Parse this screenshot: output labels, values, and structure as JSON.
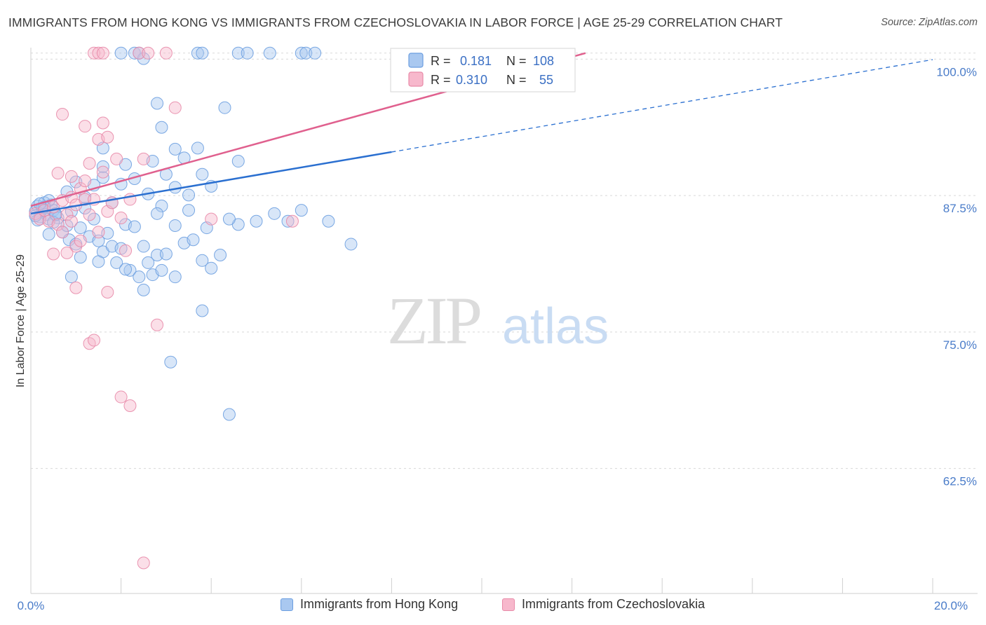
{
  "title": "IMMIGRANTS FROM HONG KONG VS IMMIGRANTS FROM CZECHOSLOVAKIA IN LABOR FORCE | AGE 25-29 CORRELATION CHART",
  "source": "Source: ZipAtlas.com",
  "watermark": {
    "zip": "ZIP",
    "atlas": "atlas"
  },
  "colors": {
    "blue_fill": "#a9c8f0",
    "blue_stroke": "#6b9ee0",
    "blue_line": "#2a6fd0",
    "pink_fill": "#f7b8cc",
    "pink_stroke": "#e88aa8",
    "pink_line": "#e0608e",
    "tick_label": "#4a7cc9",
    "grid": "#d8d8d8"
  },
  "legend": {
    "rows": [
      {
        "r_label": "R =",
        "r_value": "0.181",
        "n_label": "N =",
        "n_value": "108"
      },
      {
        "r_label": "R =",
        "r_value": "0.310",
        "n_label": "N =",
        "n_value": "55"
      }
    ]
  },
  "bottom_legend": [
    "Immigrants from Hong Kong",
    "Immigrants from Czechoslovakia"
  ],
  "chart_data": {
    "type": "scatter",
    "title": "IMMIGRANTS FROM HONG KONG VS IMMIGRANTS FROM CZECHOSLOVAKIA IN LABOR FORCE | AGE 25-29 CORRELATION CHART",
    "xlabel": "",
    "ylabel": "In Labor Force | Age 25-29",
    "xlim": [
      0,
      20
    ],
    "ylim": [
      50.5,
      100.5
    ],
    "x_tick_labels": [
      "0.0%",
      "20.0%"
    ],
    "y_ticks": [
      62.5,
      75.0,
      87.5,
      100.0
    ],
    "y_tick_labels": [
      "62.5%",
      "75.0%",
      "87.5%",
      "100.0%"
    ],
    "series": [
      {
        "name": "Immigrants from Hong Kong",
        "r": 0.181,
        "n": 108,
        "trend": {
          "x0": 0,
          "y0": 85.3,
          "x_solid_end": 8.0,
          "x1": 20,
          "y1": 99.4
        },
        "points": [
          [
            0.1,
            85.5
          ],
          [
            0.15,
            86.0
          ],
          [
            0.2,
            85.0
          ],
          [
            0.25,
            85.8
          ],
          [
            0.3,
            86.3
          ],
          [
            0.35,
            85.2
          ],
          [
            0.4,
            84.8
          ],
          [
            0.45,
            86.1
          ],
          [
            0.5,
            85.6
          ],
          [
            0.55,
            85.3
          ],
          [
            0.6,
            84.9
          ],
          [
            0.4,
            86.5
          ],
          [
            0.3,
            85.9
          ],
          [
            0.2,
            86.2
          ],
          [
            0.15,
            84.7
          ],
          [
            0.1,
            85.1
          ],
          [
            0.4,
            83.4
          ],
          [
            0.5,
            84.5
          ],
          [
            0.55,
            85.2
          ],
          [
            0.7,
            83.6
          ],
          [
            0.8,
            84.2
          ],
          [
            0.85,
            82.9
          ],
          [
            0.9,
            85.5
          ],
          [
            1.0,
            82.5
          ],
          [
            1.1,
            84.0
          ],
          [
            1.2,
            85.8
          ],
          [
            1.3,
            83.2
          ],
          [
            1.4,
            84.8
          ],
          [
            1.5,
            82.8
          ],
          [
            1.6,
            81.8
          ],
          [
            1.7,
            83.5
          ],
          [
            1.8,
            82.3
          ],
          [
            1.9,
            80.8
          ],
          [
            2.0,
            82.1
          ],
          [
            2.1,
            84.3
          ],
          [
            2.2,
            80.1
          ],
          [
            2.3,
            84.1
          ],
          [
            2.4,
            79.5
          ],
          [
            2.5,
            82.3
          ],
          [
            2.6,
            80.8
          ],
          [
            2.7,
            79.7
          ],
          [
            2.8,
            81.5
          ],
          [
            2.9,
            80.1
          ],
          [
            3.0,
            81.6
          ],
          [
            3.2,
            84.2
          ],
          [
            3.4,
            82.6
          ],
          [
            3.6,
            82.9
          ],
          [
            3.8,
            81.0
          ],
          [
            4.0,
            80.3
          ],
          [
            4.2,
            81.5
          ],
          [
            4.6,
            84.3
          ],
          [
            5.0,
            84.6
          ],
          [
            5.4,
            85.3
          ],
          [
            5.7,
            84.6
          ],
          [
            6.0,
            85.6
          ],
          [
            6.6,
            84.6
          ],
          [
            7.1,
            82.5
          ],
          [
            0.8,
            87.3
          ],
          [
            1.0,
            88.2
          ],
          [
            1.2,
            86.8
          ],
          [
            1.4,
            87.9
          ],
          [
            1.6,
            88.6
          ],
          [
            1.8,
            86.3
          ],
          [
            2.0,
            88.0
          ],
          [
            2.3,
            88.5
          ],
          [
            2.6,
            87.1
          ],
          [
            2.9,
            86.0
          ],
          [
            3.2,
            87.7
          ],
          [
            3.5,
            87.0
          ],
          [
            3.8,
            88.9
          ],
          [
            4.0,
            87.8
          ],
          [
            1.6,
            89.6
          ],
          [
            2.1,
            89.8
          ],
          [
            2.7,
            90.1
          ],
          [
            3.0,
            88.9
          ],
          [
            3.4,
            90.4
          ],
          [
            4.6,
            90.1
          ],
          [
            1.6,
            91.3
          ],
          [
            2.9,
            93.2
          ],
          [
            3.2,
            91.2
          ],
          [
            3.7,
            91.3
          ],
          [
            4.3,
            95.0
          ],
          [
            2.8,
            95.4
          ],
          [
            1.1,
            81.3
          ],
          [
            2.1,
            80.2
          ],
          [
            3.2,
            79.5
          ],
          [
            2.5,
            78.3
          ],
          [
            0.9,
            79.5
          ],
          [
            3.5,
            85.6
          ],
          [
            3.9,
            84.0
          ],
          [
            2.8,
            85.3
          ],
          [
            4.4,
            84.8
          ],
          [
            2.0,
            100.0
          ],
          [
            2.3,
            100.0
          ],
          [
            2.5,
            99.5
          ],
          [
            2.4,
            100.0
          ],
          [
            3.7,
            100.0
          ],
          [
            3.8,
            100.0
          ],
          [
            4.6,
            100.0
          ],
          [
            4.8,
            100.0
          ],
          [
            5.3,
            100.0
          ],
          [
            6.0,
            100.0
          ],
          [
            6.1,
            100.0
          ],
          [
            6.3,
            100.0
          ],
          [
            3.8,
            76.4
          ],
          [
            3.1,
            71.7
          ],
          [
            4.4,
            66.9
          ],
          [
            1.5,
            80.9
          ]
        ]
      },
      {
        "name": "Immigrants from Czechoslovakia",
        "r": 0.31,
        "n": 55,
        "trend": {
          "x0": 0,
          "y0": 86.0,
          "x1": 12.3,
          "y1": 100.0
        },
        "points": [
          [
            0.1,
            85.3
          ],
          [
            0.2,
            84.8
          ],
          [
            0.3,
            85.6
          ],
          [
            0.4,
            84.6
          ],
          [
            0.5,
            85.9
          ],
          [
            0.6,
            84.3
          ],
          [
            0.7,
            86.5
          ],
          [
            0.8,
            85.2
          ],
          [
            0.9,
            86.8
          ],
          [
            1.0,
            86.1
          ],
          [
            1.2,
            86.6
          ],
          [
            1.1,
            87.6
          ],
          [
            0.7,
            83.6
          ],
          [
            0.9,
            84.6
          ],
          [
            1.0,
            82.3
          ],
          [
            1.3,
            85.2
          ],
          [
            1.5,
            83.6
          ],
          [
            1.7,
            85.5
          ],
          [
            1.8,
            86.3
          ],
          [
            2.0,
            84.9
          ],
          [
            2.2,
            86.6
          ],
          [
            0.5,
            81.6
          ],
          [
            0.8,
            81.7
          ],
          [
            1.1,
            82.8
          ],
          [
            1.4,
            86.6
          ],
          [
            1.2,
            88.3
          ],
          [
            1.6,
            89.1
          ],
          [
            1.9,
            90.3
          ],
          [
            0.6,
            89.0
          ],
          [
            0.9,
            88.7
          ],
          [
            1.3,
            89.9
          ],
          [
            2.5,
            90.3
          ],
          [
            1.5,
            92.1
          ],
          [
            1.7,
            92.3
          ],
          [
            1.2,
            93.3
          ],
          [
            1.6,
            93.6
          ],
          [
            0.7,
            94.4
          ],
          [
            3.2,
            95.0
          ],
          [
            2.1,
            81.9
          ],
          [
            1.0,
            78.5
          ],
          [
            1.7,
            78.1
          ],
          [
            2.8,
            75.1
          ],
          [
            1.3,
            73.4
          ],
          [
            1.4,
            73.7
          ],
          [
            2.0,
            68.5
          ],
          [
            2.2,
            67.7
          ],
          [
            2.5,
            53.3
          ],
          [
            4.0,
            84.8
          ],
          [
            5.8,
            84.6
          ],
          [
            1.4,
            100.0
          ],
          [
            1.5,
            100.0
          ],
          [
            1.6,
            100.0
          ],
          [
            2.4,
            100.0
          ],
          [
            2.6,
            100.0
          ],
          [
            3.0,
            100.0
          ]
        ]
      }
    ]
  }
}
